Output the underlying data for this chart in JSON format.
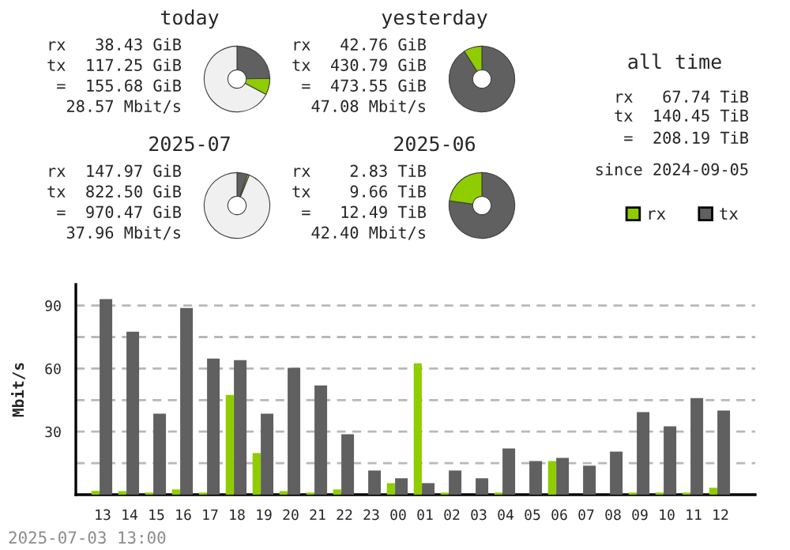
{
  "chart_data": [
    {
      "type": "donut",
      "title": "today",
      "categories": [
        null,
        null,
        null
      ],
      "values": [
        24.7,
        8.1,
        67.2
      ],
      "colors": [
        "#606060",
        "#8fcc00",
        "#f0f0f0"
      ],
      "annotations": [
        "rx   38.43 GiB",
        "tx  117.25 GiB",
        " =  155.68 GiB",
        "28.57 Mbit/s"
      ]
    },
    {
      "type": "donut",
      "title": "yesterday",
      "categories": [
        null,
        null
      ],
      "values": [
        91.0,
        9.0
      ],
      "colors": [
        "#606060",
        "#8fcc00"
      ],
      "annotations": [
        "rx   42.76 GiB",
        "tx  430.79 GiB",
        " =  473.55 GiB",
        "47.08 Mbit/s"
      ]
    },
    {
      "type": "donut",
      "title": "2025-07",
      "categories": [
        null,
        null,
        null
      ],
      "values": [
        5.2,
        0.9,
        93.9
      ],
      "colors": [
        "#606060",
        "#8fcc00",
        "#f0f0f0"
      ],
      "annotations": [
        "rx  147.97 GiB",
        "tx  822.50 GiB",
        " =  970.47 GiB",
        "37.96 Mbit/s"
      ]
    },
    {
      "type": "donut",
      "title": "2025-06",
      "categories": [
        null,
        null
      ],
      "values": [
        77.3,
        22.7
      ],
      "colors": [
        "#606060",
        "#8fcc00"
      ],
      "annotations": [
        "rx    2.83 TiB",
        "tx    9.66 TiB",
        " =   12.49 TiB",
        "42.40 Mbit/s"
      ]
    },
    {
      "type": "other",
      "title": "all time",
      "annotations": [
        "rx   67.74 TiB",
        "tx  140.45 TiB",
        " =  208.19 TiB",
        "since 2024-09-05"
      ]
    },
    {
      "type": "bar",
      "ylabel": "Mbit/s",
      "categories": [
        "13",
        "14",
        "15",
        "16",
        "17",
        "18",
        "19",
        "20",
        "21",
        "22",
        "23",
        "00",
        "01",
        "02",
        "03",
        "04",
        "05",
        "06",
        "07",
        "08",
        "09",
        "10",
        "11",
        "12"
      ],
      "series": [
        {
          "name": "rx",
          "color": "#8fcc00",
          "values": [
            1.8,
            1.7,
            1,
            2.5,
            1,
            47.5,
            19.8,
            1.7,
            1,
            2.5,
            0,
            5.5,
            62.5,
            1,
            0,
            1,
            0,
            16,
            0,
            0,
            1,
            1,
            1,
            3.3
          ]
        },
        {
          "name": "tx",
          "color": "#606060",
          "values": [
            93,
            77.5,
            38.5,
            88.8,
            64.8,
            64,
            38.5,
            60.3,
            52,
            28.8,
            11.5,
            7.8,
            5.5,
            11.5,
            7.8,
            22,
            16,
            17.5,
            13.8,
            20.5,
            39.3,
            32.5,
            46,
            40
          ]
        }
      ],
      "ylim": [
        0,
        100
      ],
      "yticks": [
        {
          "value": 15,
          "label": null
        },
        30,
        {
          "value": 45,
          "label": null
        },
        60,
        {
          "value": 75,
          "label": null
        },
        90
      ],
      "grid": "y",
      "legend": "top right",
      "annotations": [
        "2025-07-03 13:00"
      ]
    }
  ]
}
